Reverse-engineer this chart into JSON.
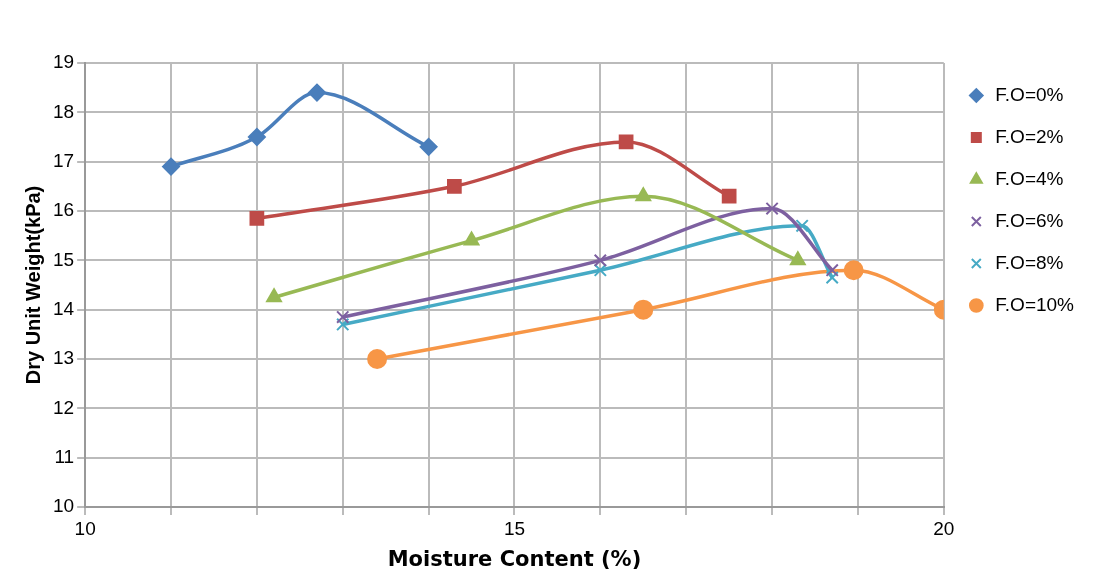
{
  "chart_data": {
    "type": "line",
    "xlabel": "Moisture Content (%)",
    "ylabel": "Dry Unit Weight(kPa)",
    "xlim": [
      10,
      20
    ],
    "xticks": [
      10,
      {
        "value": 11,
        "label": null
      },
      {
        "value": 12,
        "label": null
      },
      {
        "value": 13,
        "label": null
      },
      {
        "value": 14,
        "label": null
      },
      15,
      {
        "value": 16,
        "label": null
      },
      {
        "value": 17,
        "label": null
      },
      {
        "value": 18,
        "label": null
      },
      {
        "value": 19,
        "label": null
      },
      20
    ],
    "ylim": [
      10,
      19
    ],
    "yticks": [
      10,
      11,
      12,
      13,
      14,
      15,
      16,
      17,
      18,
      19
    ],
    "grid": true,
    "legend": "right",
    "line_style": "solid",
    "series": [
      {
        "name": "F.O=0%",
        "color": "#4a7ebb",
        "marker": "diamond",
        "x": [
          11,
          12,
          12.7,
          14
        ],
        "values": [
          16.9,
          17.5,
          18.4,
          17.3
        ]
      },
      {
        "name": "F.O=2%",
        "color": "#be4b48",
        "marker": "square",
        "x": [
          12,
          14.3,
          16.3,
          17.5
        ],
        "values": [
          15.85,
          16.5,
          17.4,
          16.3
        ]
      },
      {
        "name": "F.O=4%",
        "color": "#98b954",
        "marker": "triangle",
        "x": [
          12.2,
          14.5,
          16.5,
          18.3
        ],
        "values": [
          14.25,
          15.4,
          16.3,
          15.0
        ]
      },
      {
        "name": "F.O=6%",
        "color": "#7d60a0",
        "marker": "cross",
        "x": [
          13,
          16,
          18,
          18.7
        ],
        "values": [
          13.85,
          15.0,
          16.05,
          14.8
        ]
      },
      {
        "name": "F.O=8%",
        "color": "#46aac5",
        "marker": "cross",
        "x": [
          13,
          16,
          18.35,
          18.7
        ],
        "values": [
          13.7,
          14.8,
          15.7,
          14.65
        ]
      },
      {
        "name": "F.O=10%",
        "color": "#f79646",
        "marker": "circle",
        "x": [
          13.4,
          16.5,
          18.95,
          20
        ],
        "values": [
          13.0,
          14.0,
          14.8,
          14.0
        ]
      }
    ]
  }
}
